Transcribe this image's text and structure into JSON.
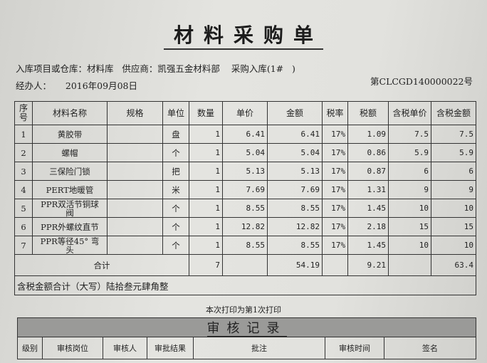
{
  "title": "材料采购单",
  "info": {
    "warehouse": "入库项目或仓库：材料库   供应商：凯强五金材料部    采购入库(1#   )",
    "handler": "经办人：     2016年09月08日",
    "doc_no": "第CLCGD140000022号"
  },
  "headers": [
    "序号",
    "材料名称",
    "规格",
    "单位",
    "数量",
    "单价",
    "金额",
    "税率",
    "税额",
    "含税单价",
    "含税金额"
  ],
  "rows": [
    [
      "1",
      "黄胶带",
      "",
      "盘",
      "1",
      "6.41",
      "6.41",
      "17%",
      "1.09",
      "7.5",
      "7.5"
    ],
    [
      "2",
      "螺帽",
      "",
      "个",
      "1",
      "5.04",
      "5.04",
      "17%",
      "0.86",
      "5.9",
      "5.9"
    ],
    [
      "3",
      "三保险门锁",
      "",
      "把",
      "1",
      "5.13",
      "5.13",
      "17%",
      "0.87",
      "6",
      "6"
    ],
    [
      "4",
      "PERT地暖管",
      "",
      "米",
      "1",
      "7.69",
      "7.69",
      "17%",
      "1.31",
      "9",
      "9"
    ],
    [
      "5",
      "PPR双活节铜球阀",
      "",
      "个",
      "1",
      "8.55",
      "8.55",
      "17%",
      "1.45",
      "10",
      "10"
    ],
    [
      "6",
      "PPR外螺纹直节",
      "",
      "个",
      "1",
      "12.82",
      "12.82",
      "17%",
      "2.18",
      "15",
      "15"
    ],
    [
      "7",
      "PPR等径45° 弯头",
      "",
      "个",
      "1",
      "8.55",
      "8.55",
      "17%",
      "1.45",
      "10",
      "10"
    ]
  ],
  "total": {
    "label": "合计",
    "qty": "7",
    "amount": "54.19",
    "tax": "9.21",
    "taxed_total": "63.4"
  },
  "capital": "含税金额合计（大写）陆拾叁元肆角整",
  "print_note": "本次打印为第1次打印",
  "audit": {
    "title": "审核记录",
    "headers": [
      "级别",
      "审核岗位",
      "审核人",
      "审批结果",
      "批注",
      "审核时间",
      "签名"
    ]
  }
}
